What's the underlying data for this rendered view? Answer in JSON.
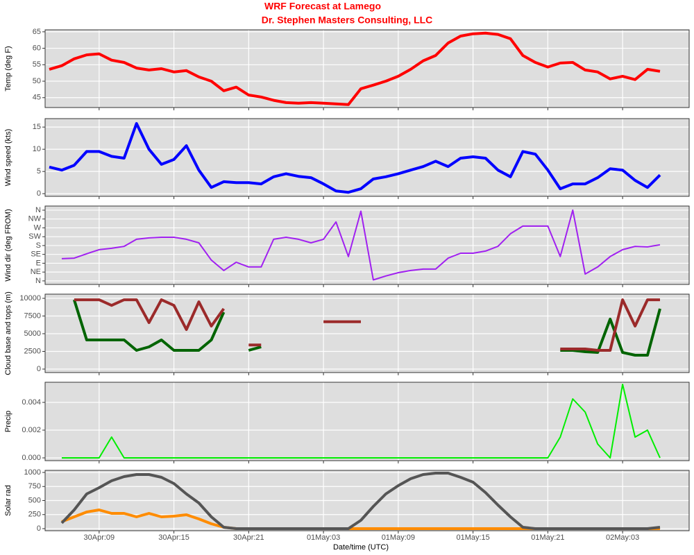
{
  "chart_data": [
    {
      "type": "line",
      "title": "WRF Forecast at Lamego",
      "subtitle": "Dr. Stephen Masters Consulting, LLC",
      "ylabel": "Temp (deg F)",
      "x": [
        "30Apr:05",
        "30Apr:06",
        "30Apr:07",
        "30Apr:08",
        "30Apr:09",
        "30Apr:10",
        "30Apr:11",
        "30Apr:12",
        "30Apr:13",
        "30Apr:14",
        "30Apr:15",
        "30Apr:16",
        "30Apr:17",
        "30Apr:18",
        "30Apr:19",
        "30Apr:20",
        "30Apr:21",
        "30Apr:22",
        "30Apr:23",
        "01May:00",
        "01May:01",
        "01May:02",
        "01May:03",
        "01May:04",
        "01May:05",
        "01May:06",
        "01May:07",
        "01May:08",
        "01May:09",
        "01May:10",
        "01May:11",
        "01May:12",
        "01May:13",
        "01May:14",
        "01May:15",
        "01May:16",
        "01May:17",
        "01May:18",
        "01May:19",
        "01May:20",
        "01May:21",
        "01May:22",
        "01May:23",
        "02May:00",
        "02May:01",
        "02May:02",
        "02May:03",
        "02May:04",
        "02May:05",
        "02May:06"
      ],
      "series": [
        {
          "color": "#ff0000",
          "values": [
            53.6,
            54.7,
            56.8,
            58,
            58.3,
            56.4,
            55.7,
            54,
            53.4,
            53.8,
            52.8,
            53.2,
            51.3,
            50,
            47.1,
            48.2,
            45.8,
            45.2,
            44.2,
            43.5,
            43.3,
            43.5,
            43.3,
            43.1,
            42.9,
            47.7,
            48.8,
            50,
            51.5,
            53.6,
            56.2,
            57.8,
            61.6,
            63.7,
            64.4,
            64.6,
            64.2,
            62.9,
            57.8,
            55.7,
            54.3,
            55.5,
            55.7,
            53.4,
            52.8,
            50.7,
            51.5,
            50.5,
            53.6,
            53
          ]
        }
      ],
      "ylim": [
        42,
        65.6
      ],
      "yticks": [
        45,
        50,
        55,
        60,
        65
      ],
      "grid": true
    },
    {
      "type": "line",
      "ylabel": "Wind speed (kts)",
      "x": [
        "30Apr:05",
        "30Apr:06",
        "30Apr:07",
        "30Apr:08",
        "30Apr:09",
        "30Apr:10",
        "30Apr:11",
        "30Apr:12",
        "30Apr:13",
        "30Apr:14",
        "30Apr:15",
        "30Apr:16",
        "30Apr:17",
        "30Apr:18",
        "30Apr:19",
        "30Apr:20",
        "30Apr:21",
        "30Apr:22",
        "30Apr:23",
        "01May:00",
        "01May:01",
        "01May:02",
        "01May:03",
        "01May:04",
        "01May:05",
        "01May:06",
        "01May:07",
        "01May:08",
        "01May:09",
        "01May:10",
        "01May:11",
        "01May:12",
        "01May:13",
        "01May:14",
        "01May:15",
        "01May:16",
        "01May:17",
        "01May:18",
        "01May:19",
        "01May:20",
        "01May:21",
        "01May:22",
        "01May:23",
        "02May:00",
        "02May:01",
        "02May:02",
        "02May:03",
        "02May:04",
        "02May:05",
        "02May:06"
      ],
      "series": [
        {
          "color": "#0000ff",
          "values": [
            6,
            5.3,
            6.4,
            9.5,
            9.5,
            8.4,
            8,
            15.8,
            10,
            6.6,
            7.7,
            10.8,
            5.3,
            1.4,
            2.7,
            2.5,
            2.5,
            2.2,
            3.8,
            4.5,
            3.9,
            3.6,
            2.2,
            0.6,
            0.3,
            1.1,
            3.3,
            3.8,
            4.5,
            5.3,
            6.1,
            7.3,
            6.1,
            8,
            8.3,
            8,
            5.3,
            3.8,
            9.5,
            8.9,
            5.3,
            1.1,
            2.2,
            2.2,
            3.6,
            5.6,
            5.3,
            3,
            1.4,
            4.2
          ]
        }
      ],
      "ylim": [
        -0.6,
        16.9
      ],
      "yticks": [
        0,
        5,
        10,
        15
      ],
      "grid": true
    },
    {
      "type": "line",
      "ylabel": "Wind dir (deg FROM)",
      "x": [
        "30Apr:05",
        "30Apr:06",
        "30Apr:07",
        "30Apr:08",
        "30Apr:09",
        "30Apr:10",
        "30Apr:11",
        "30Apr:12",
        "30Apr:13",
        "30Apr:14",
        "30Apr:15",
        "30Apr:16",
        "30Apr:17",
        "30Apr:18",
        "30Apr:19",
        "30Apr:20",
        "30Apr:21",
        "30Apr:22",
        "30Apr:23",
        "01May:00",
        "01May:01",
        "01May:02",
        "01May:03",
        "01May:04",
        "01May:05",
        "01May:06",
        "01May:07",
        "01May:08",
        "01May:09",
        "01May:10",
        "01May:11",
        "01May:12",
        "01May:13",
        "01May:14",
        "01May:15",
        "01May:16",
        "01May:17",
        "01May:18",
        "01May:19",
        "01May:20",
        "01May:21",
        "01May:22",
        "01May:23",
        "02May:00",
        "02May:01",
        "02May:02",
        "02May:03",
        "02May:04",
        "02May:05",
        "02May:06"
      ],
      "series": [
        {
          "color": "#a020f0",
          "values": [
            null,
            113,
            116,
            138,
            159,
            166,
            176,
            212,
            219,
            222,
            222,
            212,
            194,
            106,
            53,
            95,
            71,
            71,
            212,
            222,
            212,
            194,
            212,
            300,
            124,
            355,
            5,
            25,
            42,
            53,
            60,
            60,
            116,
            141,
            141,
            152,
            176,
            240,
            279,
            279,
            279,
            124,
            360,
            35,
            71,
            124,
            159,
            176,
            173,
            184
          ]
        }
      ],
      "ylim": [
        -18,
        381
      ],
      "yticks": [
        {
          "value": 0,
          "label": "N"
        },
        {
          "value": 45,
          "label": "NE"
        },
        {
          "value": 90,
          "label": "E"
        },
        {
          "value": 135,
          "label": "SE"
        },
        {
          "value": 180,
          "label": "S"
        },
        {
          "value": 225,
          "label": "SW"
        },
        {
          "value": 270,
          "label": "W"
        },
        {
          "value": 315,
          "label": "NW"
        },
        {
          "value": 360,
          "label": "N"
        }
      ],
      "grid": true
    },
    {
      "type": "line",
      "ylabel": "Cloud base and tops (m)",
      "x": [
        "30Apr:05",
        "30Apr:06",
        "30Apr:07",
        "30Apr:08",
        "30Apr:09",
        "30Apr:10",
        "30Apr:11",
        "30Apr:12",
        "30Apr:13",
        "30Apr:14",
        "30Apr:15",
        "30Apr:16",
        "30Apr:17",
        "30Apr:18",
        "30Apr:19",
        "30Apr:20",
        "30Apr:21",
        "30Apr:22",
        "30Apr:23",
        "01May:00",
        "01May:01",
        "01May:02",
        "01May:03",
        "01May:04",
        "01May:05",
        "01May:06",
        "01May:07",
        "01May:08",
        "01May:09",
        "01May:10",
        "01May:11",
        "01May:12",
        "01May:13",
        "01May:14",
        "01May:15",
        "01May:16",
        "01May:17",
        "01May:18",
        "01May:19",
        "01May:20",
        "01May:21",
        "01May:22",
        "01May:23",
        "02May:00",
        "02May:01",
        "02May:02",
        "02May:03",
        "02May:04",
        "02May:05",
        "02May:06"
      ],
      "series": [
        {
          "color": "#006400",
          "values": [
            null,
            null,
            9800,
            4120,
            4120,
            4120,
            4120,
            2650,
            3140,
            4120,
            2650,
            2650,
            2650,
            4120,
            8040,
            null,
            2650,
            3140,
            null,
            null,
            null,
            null,
            null,
            null,
            null,
            null,
            null,
            null,
            null,
            null,
            null,
            null,
            null,
            null,
            null,
            null,
            null,
            null,
            null,
            null,
            null,
            2650,
            2650,
            2450,
            2350,
            7060,
            2350,
            1960,
            1960,
            8530
          ]
        },
        {
          "color": "#9b2a2a",
          "values": [
            null,
            null,
            9800,
            9800,
            9800,
            9000,
            9800,
            9800,
            6570,
            9800,
            9000,
            5590,
            9500,
            6080,
            8530,
            null,
            3400,
            3400,
            null,
            null,
            null,
            null,
            6700,
            6700,
            6700,
            6700,
            null,
            null,
            null,
            null,
            null,
            null,
            null,
            null,
            null,
            null,
            null,
            null,
            null,
            null,
            null,
            2840,
            2840,
            2840,
            2650,
            2650,
            9800,
            6080,
            9800,
            9800
          ]
        }
      ],
      "ylim": [
        -490,
        10590
      ],
      "yticks": [
        0,
        2500,
        5000,
        7500,
        10000
      ],
      "grid": true
    },
    {
      "type": "line",
      "ylabel": "Precip",
      "x": [
        "30Apr:05",
        "30Apr:06",
        "30Apr:07",
        "30Apr:08",
        "30Apr:09",
        "30Apr:10",
        "30Apr:11",
        "30Apr:12",
        "30Apr:13",
        "30Apr:14",
        "30Apr:15",
        "30Apr:16",
        "30Apr:17",
        "30Apr:18",
        "30Apr:19",
        "30Apr:20",
        "30Apr:21",
        "30Apr:22",
        "30Apr:23",
        "01May:00",
        "01May:01",
        "01May:02",
        "01May:03",
        "01May:04",
        "01May:05",
        "01May:06",
        "01May:07",
        "01May:08",
        "01May:09",
        "01May:10",
        "01May:11",
        "01May:12",
        "01May:13",
        "01May:14",
        "01May:15",
        "01May:16",
        "01May:17",
        "01May:18",
        "01May:19",
        "01May:20",
        "01May:21",
        "01May:22",
        "01May:23",
        "02May:00",
        "02May:01",
        "02May:02",
        "02May:03",
        "02May:04",
        "02May:05",
        "02May:06"
      ],
      "series": [
        {
          "color": "#00ee00",
          "values": [
            null,
            0,
            0,
            0,
            0,
            0.0015,
            0,
            0,
            0,
            0,
            0,
            0,
            0,
            0,
            0,
            0,
            0,
            0,
            0,
            0,
            0,
            0,
            0,
            0,
            0,
            0,
            0,
            0,
            0,
            0,
            0,
            0,
            0,
            0,
            0,
            0,
            0,
            0,
            0,
            0,
            0,
            0.0015,
            0.00425,
            0.0033,
            0.001,
            0,
            0.0053,
            0.0015,
            0.002,
            0
          ]
        }
      ],
      "ylim": [
        -0.0002,
        0.00545
      ],
      "yticks": [
        {
          "value": 0,
          "label": "0.000"
        },
        {
          "value": 0.002,
          "label": "0.002"
        },
        {
          "value": 0.004,
          "label": "0.004"
        }
      ],
      "grid": true
    },
    {
      "type": "line",
      "ylabel": "Solar rad",
      "xlabel": "Date/time (UTC)",
      "x": [
        "30Apr:05",
        "30Apr:06",
        "30Apr:07",
        "30Apr:08",
        "30Apr:09",
        "30Apr:10",
        "30Apr:11",
        "30Apr:12",
        "30Apr:13",
        "30Apr:14",
        "30Apr:15",
        "30Apr:16",
        "30Apr:17",
        "30Apr:18",
        "30Apr:19",
        "30Apr:20",
        "30Apr:21",
        "30Apr:22",
        "30Apr:23",
        "01May:00",
        "01May:01",
        "01May:02",
        "01May:03",
        "01May:04",
        "01May:05",
        "01May:06",
        "01May:07",
        "01May:08",
        "01May:09",
        "01May:10",
        "01May:11",
        "01May:12",
        "01May:13",
        "01May:14",
        "01May:15",
        "01May:16",
        "01May:17",
        "01May:18",
        "01May:19",
        "01May:20",
        "01May:21",
        "01May:22",
        "01May:23",
        "02May:00",
        "02May:01",
        "02May:02",
        "02May:03",
        "02May:04",
        "02May:05",
        "02May:06"
      ],
      "xticks": [
        "30Apr:09",
        "30Apr:15",
        "30Apr:21",
        "01May:03",
        "01May:09",
        "01May:15",
        "01May:21",
        "02May:03"
      ],
      "series": [
        {
          "color": "#ff8c00",
          "values": [
            null,
            123,
            210,
            296,
            333,
            272,
            272,
            210,
            272,
            210,
            222,
            247,
            173,
            86,
            25,
            0,
            0,
            0,
            0,
            0,
            0,
            0,
            0,
            0,
            0,
            0,
            0,
            0,
            0,
            0,
            0,
            0,
            0,
            0,
            0,
            0,
            0,
            0,
            0,
            0,
            0,
            0,
            0,
            0,
            0,
            0,
            0,
            0,
            0,
            0
          ]
        },
        {
          "color": "#555555",
          "values": [
            null,
            100,
            333,
            617,
            728,
            852,
            926,
            963,
            963,
            914,
            802,
            617,
            457,
            210,
            25,
            0,
            0,
            0,
            0,
            0,
            0,
            0,
            0,
            0,
            0,
            148,
            395,
            617,
            765,
            889,
            963,
            988,
            988,
            914,
            827,
            642,
            420,
            210,
            25,
            0,
            0,
            0,
            0,
            0,
            0,
            0,
            0,
            0,
            0,
            25
          ]
        }
      ],
      "ylim": [
        -37,
        1037
      ],
      "yticks": [
        0,
        250,
        500,
        750,
        1000
      ],
      "grid": true
    }
  ]
}
